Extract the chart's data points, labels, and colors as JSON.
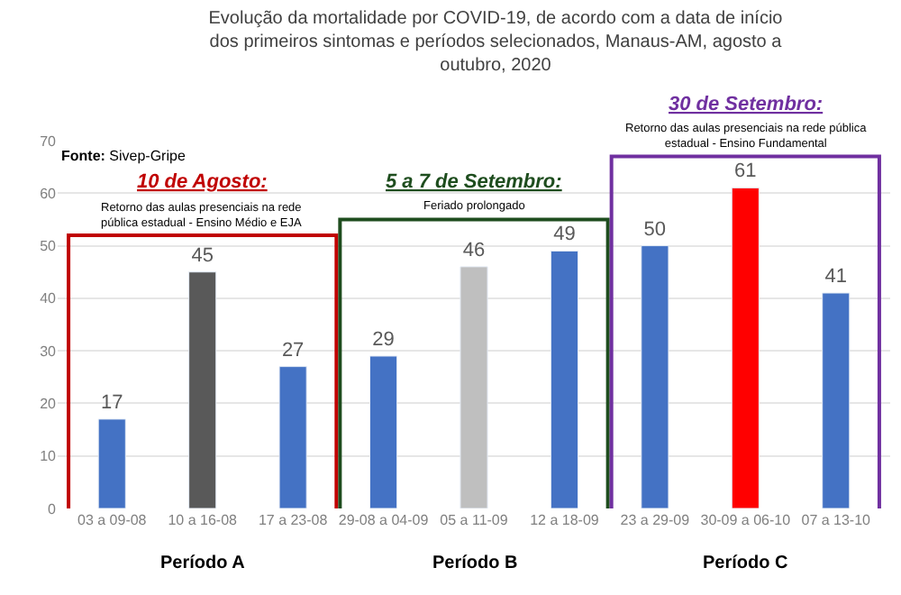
{
  "chart_data": {
    "type": "bar",
    "title": "Evolução da mortalidade por COVID-19, de acordo com a data de início\ndos primeiros sintomas e períodos selecionados, Manaus-AM, agosto a\noutubro, 2020",
    "categories": [
      "03 a 09-08",
      "10 a 16-08",
      "17 a 23-08",
      "29-08 a 04-09",
      "05 a 11-09",
      "12 a 18-09",
      "23 a 29-09",
      "30-09 a 06-10",
      "07 a 13-10"
    ],
    "values": [
      17,
      45,
      27,
      29,
      46,
      49,
      50,
      61,
      41
    ],
    "colors": [
      "#4472c4",
      "#595959",
      "#4472c4",
      "#4472c4",
      "#bfbfbf",
      "#4472c4",
      "#4472c4",
      "#ff0000",
      "#4472c4"
    ],
    "data_labels": true,
    "ylim": [
      0,
      70
    ],
    "yticks": [
      0,
      10,
      20,
      30,
      40,
      50,
      60,
      70
    ],
    "grid": "y",
    "annotations": [
      "Fonte: Sivep-Gripe",
      "Período A",
      "Período B",
      "Período C",
      "10 de Agosto:",
      "Retorno das aulas presenciais na rede\npública estadual - Ensino Médio e EJA",
      "5 a 7 de Setembro:",
      "Feriado prolongado",
      "30 de Setembro:",
      "Retorno das aulas presenciais na rede pública\nestadual - Ensino Fundamental"
    ]
  }
}
